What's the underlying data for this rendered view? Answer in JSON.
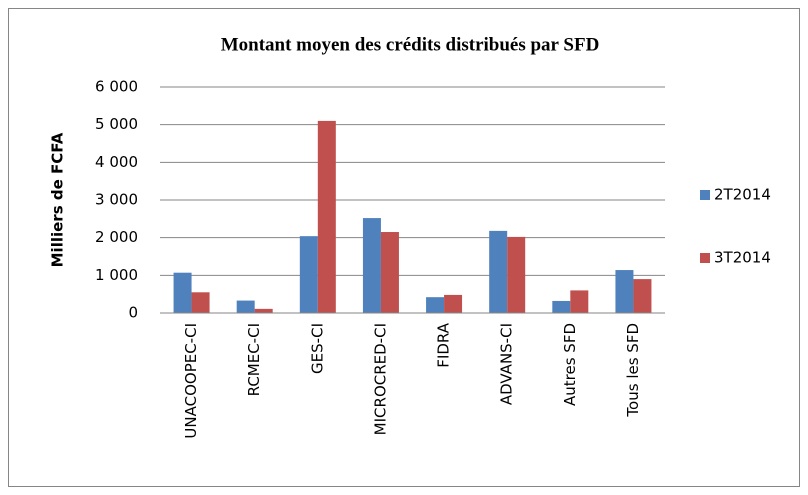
{
  "chart_data": {
    "type": "bar",
    "title": "Montant moyen des crédits distribués par SFD",
    "y_label": "Milliers de FCFA",
    "categories": [
      "UNACOOPEC-CI",
      "RCMEC-CI",
      "GES-CI",
      "MICROCRED-CI",
      "FIDRA",
      "ADVANS-CI",
      "Autres SFD",
      "Tous les SFD"
    ],
    "series": [
      {
        "name": "2T2014",
        "color": "#4f81bd",
        "values": [
          1070,
          330,
          2040,
          2520,
          420,
          2180,
          320,
          1140
        ]
      },
      {
        "name": "3T2014",
        "color": "#c0504d",
        "values": [
          550,
          110,
          5100,
          2150,
          480,
          2020,
          600,
          900
        ]
      }
    ],
    "ylim": [
      0,
      6000
    ],
    "yticks": [
      0,
      {
        "value": 1000,
        "label": "1 000"
      },
      {
        "value": 2000,
        "label": "2 000"
      },
      {
        "value": 3000,
        "label": "3 000"
      },
      {
        "value": 4000,
        "label": "4 000"
      },
      {
        "value": 5000,
        "label": "5 000"
      },
      {
        "value": 6000,
        "label": "6 000"
      }
    ],
    "grid": true,
    "legend": "right"
  }
}
